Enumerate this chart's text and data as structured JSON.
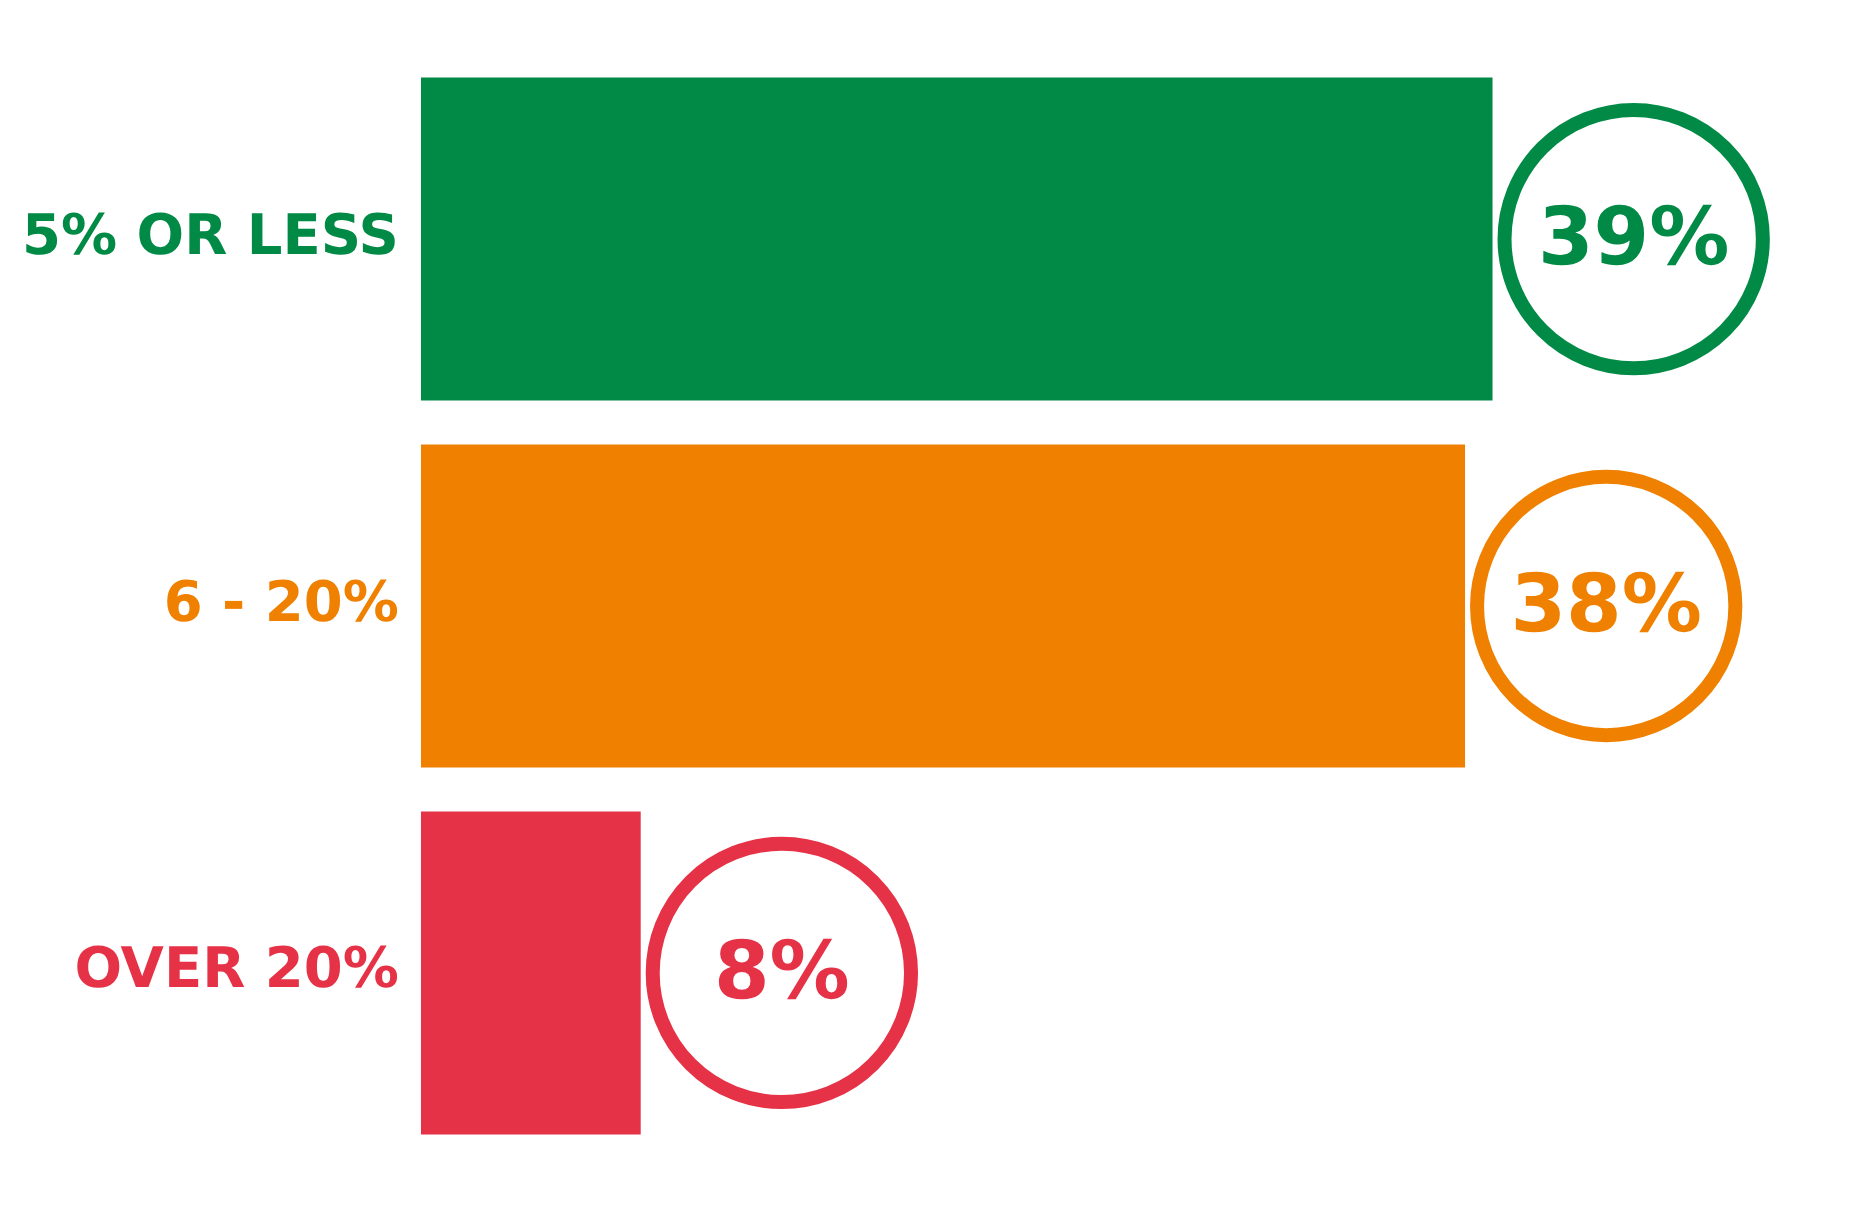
{
  "chart_data": {
    "type": "bar",
    "orientation": "horizontal",
    "categories": [
      "5% OR LESS",
      "6 - 20%",
      "OVER 20%"
    ],
    "values": [
      39,
      38,
      8
    ],
    "colors": [
      "#008a45",
      "#ef8000",
      "#e63246"
    ],
    "value_labels": [
      "39%",
      "38%",
      "8%"
    ],
    "tick_labels": "y",
    "legend": false
  }
}
